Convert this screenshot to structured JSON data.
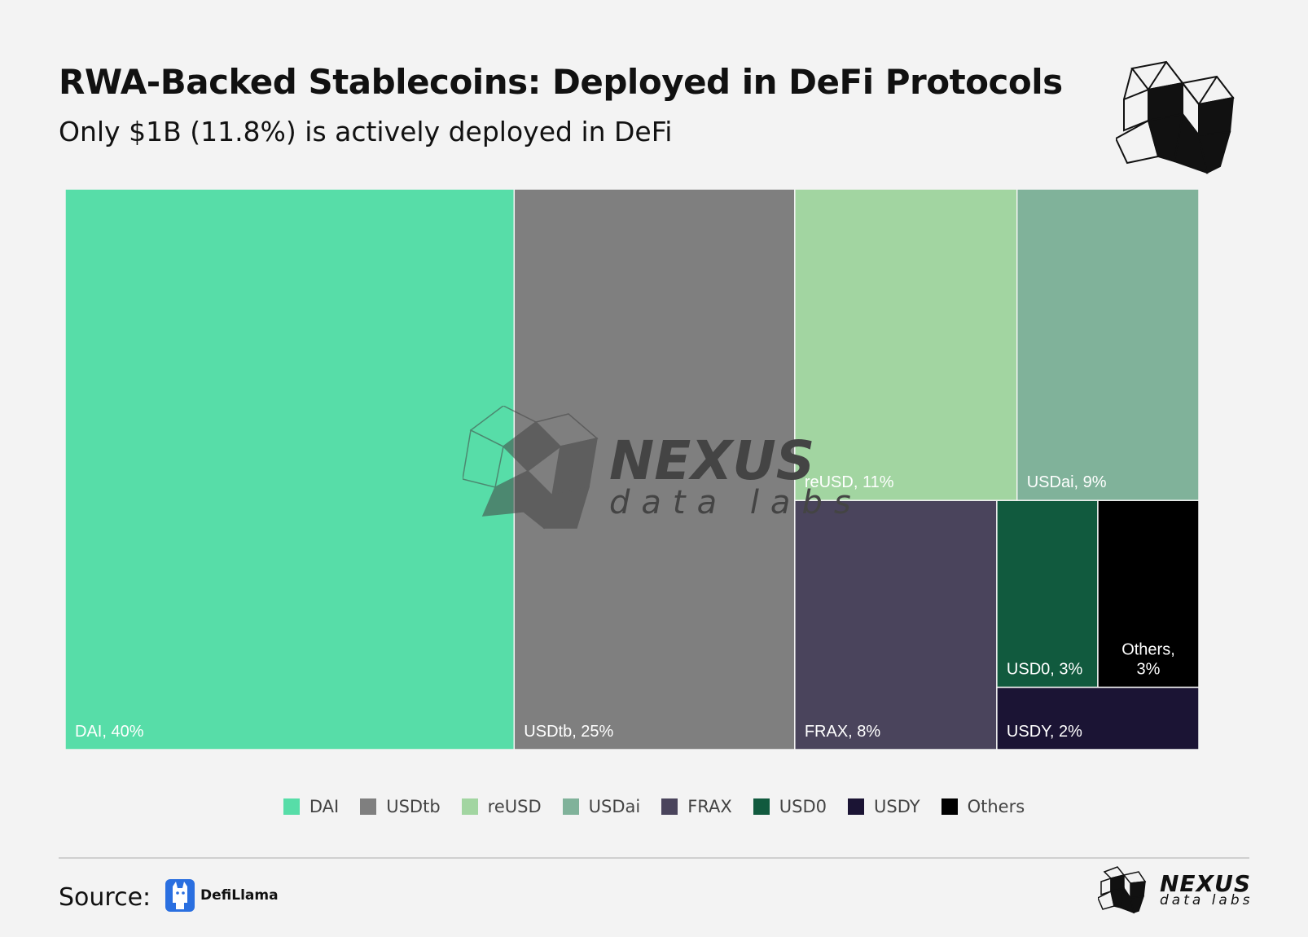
{
  "header": {
    "title": "RWA-Backed Stablecoins: Deployed in DeFi Protocols",
    "subtitle": "Only $1B (11.8%) is actively deployed in DeFi"
  },
  "chart_data": {
    "type": "treemap",
    "title": "RWA-Backed Stablecoins: Deployed in DeFi Protocols",
    "subtitle": "Only $1B (11.8%) is actively deployed in DeFi",
    "unit": "%",
    "items": [
      {
        "name": "DAI",
        "value": 40,
        "label": "DAI, 40%",
        "color": "#57dda8"
      },
      {
        "name": "USDtb",
        "value": 25,
        "label": "USDtb, 25%",
        "color": "#7f7f7f"
      },
      {
        "name": "reUSD",
        "value": 11,
        "label": "reUSD, 11%",
        "color": "#a2d5a1"
      },
      {
        "name": "USDai",
        "value": 9,
        "label": "USDai, 9%",
        "color": "#80b29a"
      },
      {
        "name": "FRAX",
        "value": 8,
        "label": "FRAX, 8%",
        "color": "#4a445c"
      },
      {
        "name": "USD0",
        "value": 3,
        "label": "USD0, 3%",
        "color": "#115a3e"
      },
      {
        "name": "Others",
        "value": 3,
        "label": "Others,\n3%",
        "color": "#000000"
      },
      {
        "name": "USDY",
        "value": 2,
        "label": "USDY, 2%",
        "color": "#1b1434"
      }
    ],
    "legend": [
      "DAI",
      "USDtb",
      "reUSD",
      "USDai",
      "FRAX",
      "USD0",
      "USDY",
      "Others"
    ],
    "legend_position": "bottom"
  },
  "watermark": {
    "name": "NEXUS",
    "sub": "data labs"
  },
  "footer": {
    "source_label": "Source:",
    "source_name": "DefiLlama",
    "brand_name": "NEXUS",
    "brand_sub": "data labs"
  }
}
